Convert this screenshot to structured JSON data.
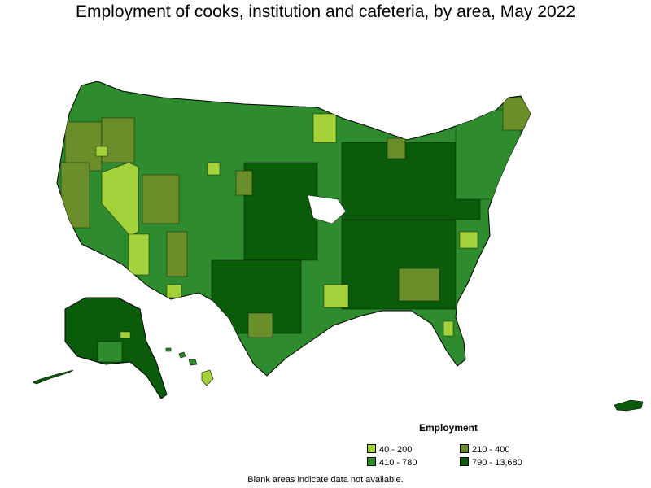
{
  "title": "Employment of cooks, institution and cafeteria, by area, May 2022",
  "legend": {
    "heading": "Employment",
    "items": [
      {
        "label": "40 - 200",
        "color": "#a3d13a"
      },
      {
        "label": "210 - 400",
        "color": "#6a8f2a"
      },
      {
        "label": "410 - 780",
        "color": "#2e8b2e"
      },
      {
        "label": "790 - 13,680",
        "color": "#0a5c0a"
      }
    ]
  },
  "note": "Blank areas indicate data not available.",
  "chart_data": {
    "type": "choropleth",
    "title": "Employment of cooks, institution and cafeteria, by area, May 2022",
    "legend_title": "Employment",
    "bins": [
      {
        "range": "40 - 200",
        "min": 40,
        "max": 200,
        "color": "#a3d13a"
      },
      {
        "range": "210 - 400",
        "min": 210,
        "max": 400,
        "color": "#6a8f2a"
      },
      {
        "range": "410 - 780",
        "min": 410,
        "max": 780,
        "color": "#2e8b2e"
      },
      {
        "range": "790 - 13,680",
        "min": 790,
        "max": 13680,
        "color": "#0a5c0a"
      }
    ],
    "legend_position": "bottom-right"
  }
}
